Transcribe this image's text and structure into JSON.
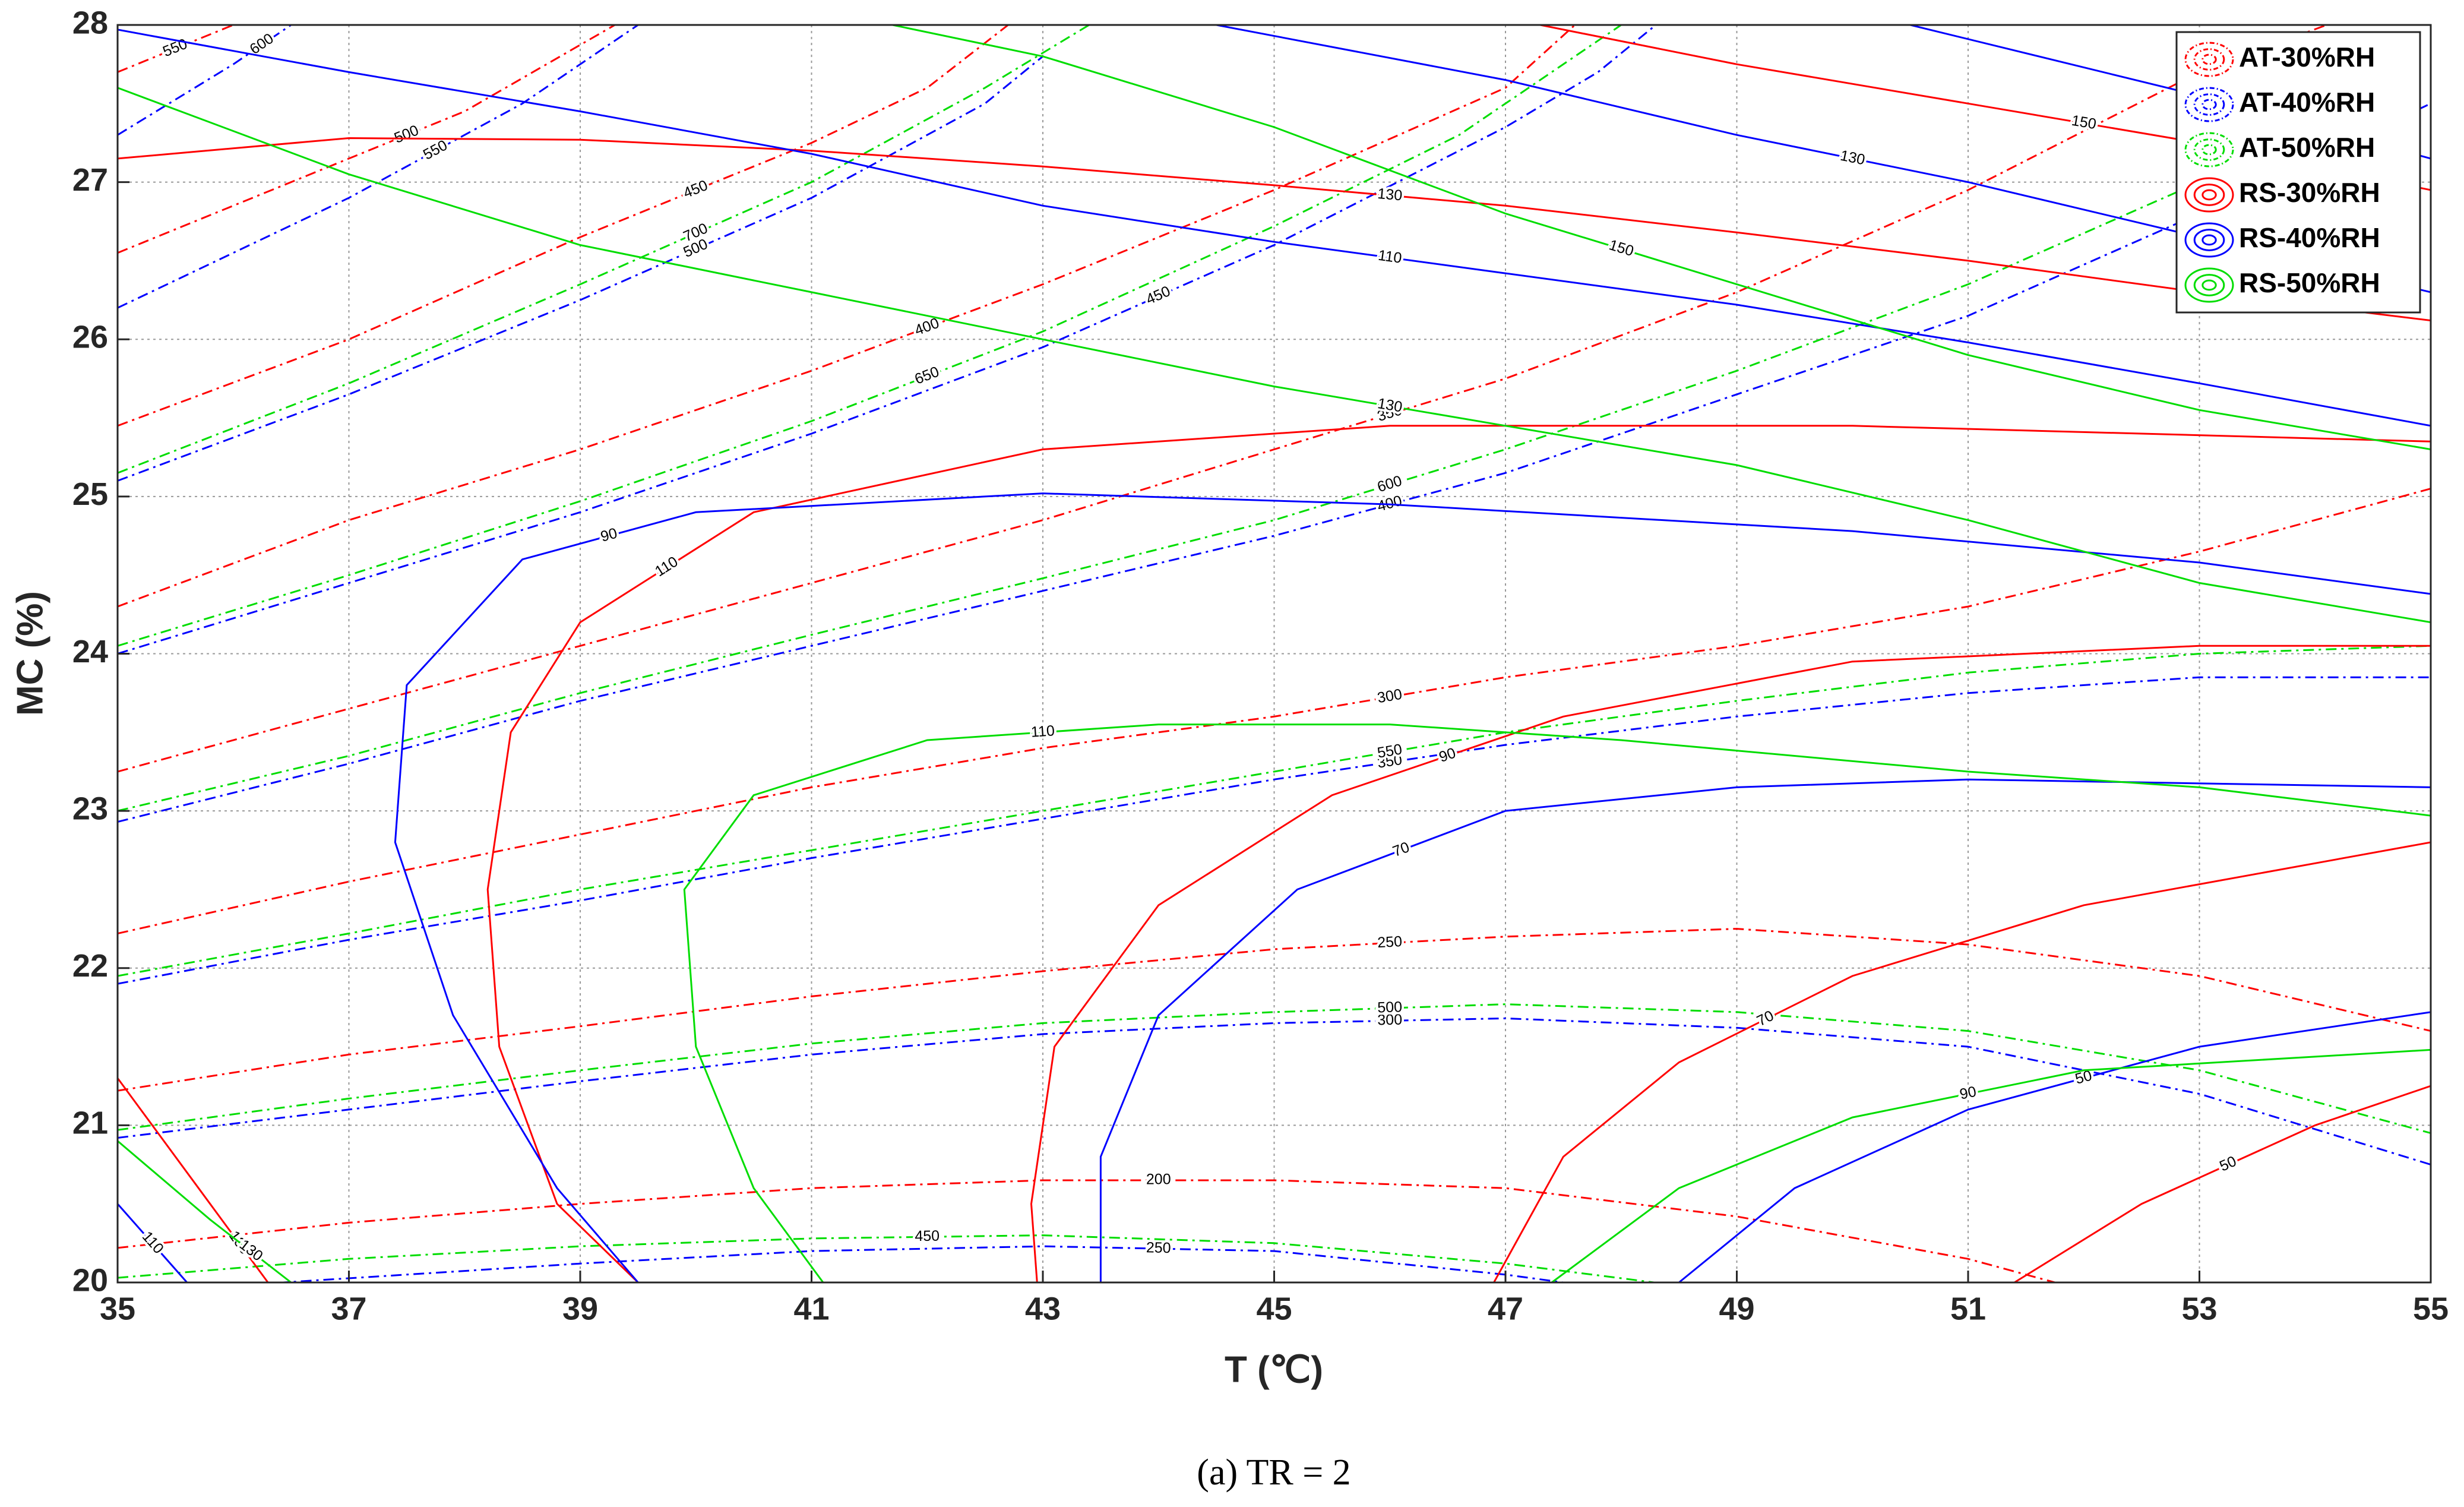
{
  "chart_data": {
    "type": "contour",
    "xlabel": "T (℃)",
    "ylabel": "MC (%)",
    "caption": "(a) TR = 2",
    "xlim": [
      35,
      55
    ],
    "ylim": [
      20,
      28
    ],
    "xticks": [
      35,
      37,
      39,
      41,
      43,
      45,
      47,
      49,
      51,
      53,
      55
    ],
    "yticks": [
      20,
      21,
      22,
      23,
      24,
      25,
      26,
      27,
      28
    ],
    "grid": true,
    "legend": "top-right",
    "series": [
      {
        "name": "AT-30%RH",
        "color": "#ff0000",
        "style": "dashdot",
        "contours": [
          {
            "level": 200,
            "x": [
              35,
              37,
              39,
              41,
              43,
              45,
              47,
              49,
              51,
              52
            ],
            "y": [
              20.22,
              20.38,
              20.5,
              20.6,
              20.65,
              20.65,
              20.6,
              20.42,
              20.15,
              19.95
            ]
          },
          {
            "level": 250,
            "x": [
              35,
              37,
              39,
              41,
              43,
              45,
              47,
              49,
              51,
              53,
              55
            ],
            "y": [
              21.22,
              21.45,
              21.63,
              21.82,
              21.98,
              22.12,
              22.2,
              22.25,
              22.15,
              21.95,
              21.6
            ]
          },
          {
            "level": 300,
            "x": [
              35,
              37,
              39,
              41,
              43,
              45,
              47,
              49,
              51,
              53,
              55
            ],
            "y": [
              22.22,
              22.55,
              22.85,
              23.15,
              23.4,
              23.6,
              23.85,
              24.05,
              24.3,
              24.65,
              25.05
            ]
          },
          {
            "level": 350,
            "x": [
              35,
              37,
              39,
              41,
              43,
              45,
              47,
              49,
              51,
              53,
              54.1
            ],
            "y": [
              23.25,
              23.65,
              24.05,
              24.45,
              24.85,
              25.3,
              25.75,
              26.3,
              26.95,
              27.7,
              28
            ]
          },
          {
            "level": 400,
            "x": [
              35,
              37,
              39,
              41,
              43,
              45,
              47,
              47.6
            ],
            "y": [
              24.3,
              24.85,
              25.3,
              25.8,
              26.35,
              26.95,
              27.6,
              28
            ]
          },
          {
            "level": 450,
            "x": [
              35,
              37,
              39,
              41,
              42,
              42.7
            ],
            "y": [
              25.45,
              26.0,
              26.65,
              27.25,
              27.6,
              28
            ]
          },
          {
            "level": 500,
            "x": [
              35,
              37,
              38,
              39.3
            ],
            "y": [
              26.55,
              27.15,
              27.45,
              28
            ]
          },
          {
            "level": 550,
            "x": [
              35,
              36
            ],
            "y": [
              27.7,
              28
            ]
          }
        ]
      },
      {
        "name": "AT-40%RH",
        "color": "#0000ff",
        "style": "dashdot",
        "contours": [
          {
            "level": 250,
            "x": [
              36,
              39,
              41,
              43,
              45,
              47,
              48
            ],
            "y": [
              19.98,
              20.12,
              20.2,
              20.23,
              20.2,
              20.05,
              19.95
            ]
          },
          {
            "level": 300,
            "x": [
              35,
              37,
              39,
              41,
              43,
              45,
              47,
              49,
              51,
              53,
              55
            ],
            "y": [
              20.92,
              21.1,
              21.28,
              21.45,
              21.58,
              21.65,
              21.68,
              21.62,
              21.5,
              21.2,
              20.75
            ]
          },
          {
            "level": 350,
            "x": [
              35,
              37,
              39,
              41,
              43,
              45,
              47,
              49,
              51,
              53,
              55
            ],
            "y": [
              21.9,
              22.18,
              22.43,
              22.7,
              22.95,
              23.2,
              23.42,
              23.6,
              23.75,
              23.85,
              23.85
            ]
          },
          {
            "level": 400,
            "x": [
              35,
              37,
              39,
              41,
              43,
              45,
              47,
              49,
              51,
              53,
              55
            ],
            "y": [
              22.93,
              23.3,
              23.7,
              24.05,
              24.4,
              24.75,
              25.15,
              25.65,
              26.15,
              26.8,
              27.5
            ]
          },
          {
            "level": 450,
            "x": [
              35,
              37,
              39,
              41,
              43,
              45,
              47,
              47.8,
              48.3
            ],
            "y": [
              24.0,
              24.45,
              24.9,
              25.4,
              25.95,
              26.6,
              27.35,
              27.7,
              28
            ]
          },
          {
            "level": 500,
            "x": [
              35,
              37,
              39,
              41,
              42.5,
              43
            ],
            "y": [
              25.1,
              25.65,
              26.25,
              26.9,
              27.5,
              27.8
            ]
          },
          {
            "level": 550,
            "x": [
              35,
              37,
              38.5,
              39.5
            ],
            "y": [
              26.2,
              26.9,
              27.5,
              28
            ]
          },
          {
            "level": 600,
            "x": [
              35,
              36,
              36.5
            ],
            "y": [
              27.3,
              27.75,
              28
            ]
          }
        ]
      },
      {
        "name": "AT-50%RH",
        "color": "#00dd00",
        "style": "dashdot",
        "contours": [
          {
            "level": 450,
            "x": [
              35,
              37,
              39,
              41,
              43,
              45,
              47,
              48.5
            ],
            "y": [
              20.03,
              20.15,
              20.23,
              20.28,
              20.3,
              20.25,
              20.12,
              19.98
            ]
          },
          {
            "level": 500,
            "x": [
              35,
              37,
              39,
              41,
              43,
              45,
              47,
              49,
              51,
              53,
              55
            ],
            "y": [
              20.97,
              21.17,
              21.35,
              21.52,
              21.65,
              21.72,
              21.77,
              21.72,
              21.6,
              21.35,
              20.95
            ]
          },
          {
            "level": 550,
            "x": [
              35,
              37,
              39,
              41,
              43,
              45,
              47,
              49,
              51,
              53,
              55
            ],
            "y": [
              21.95,
              22.22,
              22.5,
              22.75,
              23.0,
              23.25,
              23.5,
              23.7,
              23.88,
              24.0,
              24.05
            ]
          },
          {
            "level": 600,
            "x": [
              35,
              37,
              39,
              41,
              43,
              45,
              47,
              49,
              51,
              53,
              54.4
            ],
            "y": [
              23.0,
              23.35,
              23.75,
              24.12,
              24.48,
              24.85,
              25.3,
              25.8,
              26.35,
              27.0,
              27.6
            ]
          },
          {
            "level": 650,
            "x": [
              35,
              37,
              39,
              41,
              43,
              45,
              46.6,
              48
            ],
            "y": [
              24.05,
              24.5,
              24.97,
              25.48,
              26.05,
              26.72,
              27.3,
              28
            ]
          },
          {
            "level": 700,
            "x": [
              35,
              37,
              39,
              41,
              42.5,
              43.4
            ],
            "y": [
              25.15,
              25.72,
              26.35,
              27.0,
              27.6,
              28
            ]
          }
        ]
      },
      {
        "name": "RS-30%RH",
        "color": "#ff0000",
        "style": "solid",
        "contours": [
          {
            "level": 50,
            "x": [
              51.4,
              52.5,
              54,
              55
            ],
            "y": [
              20,
              20.5,
              21.0,
              21.25
            ]
          },
          {
            "level": 70,
            "x": [
              46.9,
              47.5,
              48.5,
              50,
              52,
              55
            ],
            "y": [
              20,
              20.8,
              21.4,
              21.95,
              22.4,
              22.8
            ]
          },
          {
            "level": 90,
            "x": [
              42.95,
              42.9,
              43.1,
              44,
              45.5,
              47.5,
              50,
              53,
              55
            ],
            "y": [
              20,
              20.5,
              21.5,
              22.4,
              23.1,
              23.6,
              23.95,
              24.05,
              24.05
            ]
          },
          {
            "level": 110,
            "x": [
              39.5,
              38.8,
              38.3,
              38.2,
              38.4,
              39,
              40.5,
              43,
              46,
              50,
              55
            ],
            "y": [
              20,
              20.5,
              21.5,
              22.5,
              23.5,
              24.2,
              24.9,
              25.3,
              25.45,
              25.45,
              25.35
            ]
          },
          {
            "level": 130,
            "x": [
              35,
              35.8,
              36.3
            ],
            "y": [
              21.3,
              20.5,
              20
            ]
          },
          {
            "level": 130,
            "x": [
              35,
              37,
              39,
              41,
              43,
              45,
              47,
              49,
              51,
              53,
              55
            ],
            "y": [
              27.15,
              27.28,
              27.27,
              27.2,
              27.1,
              26.98,
              26.85,
              26.68,
              26.5,
              26.3,
              26.12
            ]
          },
          {
            "level": 150,
            "x": [
              47.3,
              49,
              51,
              53,
              55
            ],
            "y": [
              28,
              27.75,
              27.5,
              27.25,
              26.95
            ]
          }
        ]
      },
      {
        "name": "RS-40%RH",
        "color": "#0000ff",
        "style": "solid",
        "contours": [
          {
            "level": 50,
            "x": [
              48.5,
              49.5,
              51,
              53,
              55
            ],
            "y": [
              20,
              20.6,
              21.1,
              21.5,
              21.72
            ]
          },
          {
            "level": 70,
            "x": [
              43.5,
              43.5,
              44,
              45.2,
              47,
              49,
              51,
              55
            ],
            "y": [
              20,
              20.8,
              21.7,
              22.5,
              23.0,
              23.15,
              23.2,
              23.15
            ]
          },
          {
            "level": 90,
            "x": [
              39.5,
              38.8,
              37.9,
              37.4,
              37.5,
              38.5,
              40,
              43,
              46,
              50,
              53,
              55
            ],
            "y": [
              20,
              20.6,
              21.7,
              22.8,
              23.8,
              24.6,
              24.9,
              25.02,
              24.95,
              24.78,
              24.58,
              24.38
            ]
          },
          {
            "level": 110,
            "x": [
              35,
              35.6
            ],
            "y": [
              20.5,
              20
            ]
          },
          {
            "level": 110,
            "x": [
              35,
              37,
              39,
              41,
              43,
              45,
              47,
              49,
              51,
              53,
              55
            ],
            "y": [
              27.97,
              27.7,
              27.45,
              27.18,
              26.85,
              26.62,
              26.42,
              26.22,
              25.98,
              25.72,
              25.45
            ]
          },
          {
            "level": 130,
            "x": [
              44.5,
              47,
              49,
              51,
              53,
              55
            ],
            "y": [
              28,
              27.65,
              27.3,
              27.0,
              26.65,
              26.3
            ]
          },
          {
            "level": 150,
            "x": [
              50.5,
              53,
              55
            ],
            "y": [
              28,
              27.55,
              27.15
            ]
          }
        ]
      },
      {
        "name": "RS-50%RH",
        "color": "#00dd00",
        "style": "solid",
        "contours": [
          {
            "level": 90,
            "x": [
              47.4,
              48.5,
              50,
              52,
              55
            ],
            "y": [
              20,
              20.6,
              21.05,
              21.35,
              21.48
            ]
          },
          {
            "level": 110,
            "x": [
              41.1,
              40.5,
              40,
              39.9,
              40.5,
              42,
              44,
              46,
              48,
              51,
              53,
              55
            ],
            "y": [
              20,
              20.6,
              21.5,
              22.5,
              23.1,
              23.45,
              23.55,
              23.55,
              23.45,
              23.25,
              23.15,
              22.97
            ]
          },
          {
            "level": 130,
            "x": [
              35,
              35.8,
              36.5
            ],
            "y": [
              20.9,
              20.4,
              20
            ]
          },
          {
            "level": 130,
            "x": [
              35,
              37,
              39,
              41,
              43,
              45,
              47,
              49,
              51,
              53,
              55
            ],
            "y": [
              27.6,
              27.05,
              26.6,
              26.3,
              26.0,
              25.7,
              25.45,
              25.2,
              24.85,
              24.45,
              24.2
            ]
          },
          {
            "level": 150,
            "x": [
              41.7,
              43,
              45,
              47,
              49,
              51,
              53,
              55
            ],
            "y": [
              28,
              27.8,
              27.35,
              26.8,
              26.35,
              25.9,
              25.55,
              25.3
            ]
          }
        ]
      }
    ]
  }
}
